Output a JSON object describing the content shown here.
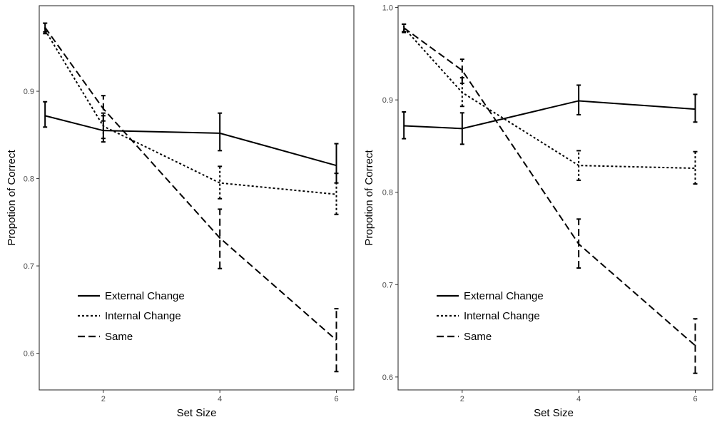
{
  "chart_data": [
    {
      "type": "line",
      "xlabel": "Set Size",
      "ylabel": "Propotion of Correct",
      "xlim": [
        0.9,
        6.3
      ],
      "ylim": [
        0.558,
        0.998
      ],
      "xticks": [
        2,
        4,
        6
      ],
      "xtick_labels": [
        "2",
        "4",
        "6"
      ],
      "yticks": [
        0.6,
        0.7,
        0.8,
        0.9
      ],
      "ytick_labels": [
        "0.6",
        "0.7",
        "0.8",
        "0.9"
      ],
      "grid": false,
      "legend_position": "bottom-left",
      "series": [
        {
          "name": "External Change",
          "style": "solid",
          "x": [
            1,
            2,
            4,
            6
          ],
          "y": [
            0.872,
            0.855,
            0.852,
            0.815
          ],
          "err_low": [
            0.859,
            0.842,
            0.832,
            0.795
          ],
          "err_high": [
            0.888,
            0.872,
            0.875,
            0.84
          ]
        },
        {
          "name": "Internal Change",
          "style": "dotted",
          "x": [
            1,
            2,
            4,
            6
          ],
          "y": [
            0.97,
            0.86,
            0.795,
            0.782
          ],
          "err_low": [
            0.966,
            0.846,
            0.777,
            0.759
          ],
          "err_high": [
            0.978,
            0.875,
            0.814,
            0.806
          ]
        },
        {
          "name": "Same",
          "style": "dashed",
          "x": [
            1,
            2,
            4,
            6
          ],
          "y": [
            0.973,
            0.88,
            0.732,
            0.615
          ],
          "err_low": [
            0.968,
            0.866,
            0.697,
            0.579
          ],
          "err_high": [
            0.978,
            0.895,
            0.765,
            0.651
          ]
        }
      ]
    },
    {
      "type": "line",
      "xlabel": "Set Size",
      "ylabel": "Propotion of Correct",
      "xlim": [
        0.9,
        6.3
      ],
      "ylim": [
        0.586,
        1.002
      ],
      "xticks": [
        2,
        4,
        6
      ],
      "xtick_labels": [
        "2",
        "4",
        "6"
      ],
      "yticks": [
        0.6,
        0.7,
        0.8,
        0.9,
        1.0
      ],
      "ytick_labels": [
        "0.6",
        "0.7",
        "0.8",
        "0.9",
        "1.0"
      ],
      "grid": false,
      "legend_position": "bottom-left",
      "series": [
        {
          "name": "External Change",
          "style": "solid",
          "x": [
            1,
            2,
            4,
            6
          ],
          "y": [
            0.872,
            0.869,
            0.899,
            0.89
          ],
          "err_low": [
            0.858,
            0.852,
            0.884,
            0.876
          ],
          "err_high": [
            0.887,
            0.886,
            0.916,
            0.906
          ]
        },
        {
          "name": "Internal Change",
          "style": "dotted",
          "x": [
            1,
            2,
            4,
            6
          ],
          "y": [
            0.978,
            0.908,
            0.829,
            0.826
          ],
          "err_low": [
            0.974,
            0.893,
            0.813,
            0.809
          ],
          "err_high": [
            0.982,
            0.924,
            0.845,
            0.844
          ]
        },
        {
          "name": "Same",
          "style": "dashed",
          "x": [
            1,
            2,
            4,
            6
          ],
          "y": [
            0.978,
            0.932,
            0.744,
            0.634
          ],
          "err_low": [
            0.973,
            0.918,
            0.718,
            0.604
          ],
          "err_high": [
            0.982,
            0.944,
            0.771,
            0.663
          ]
        }
      ]
    }
  ]
}
